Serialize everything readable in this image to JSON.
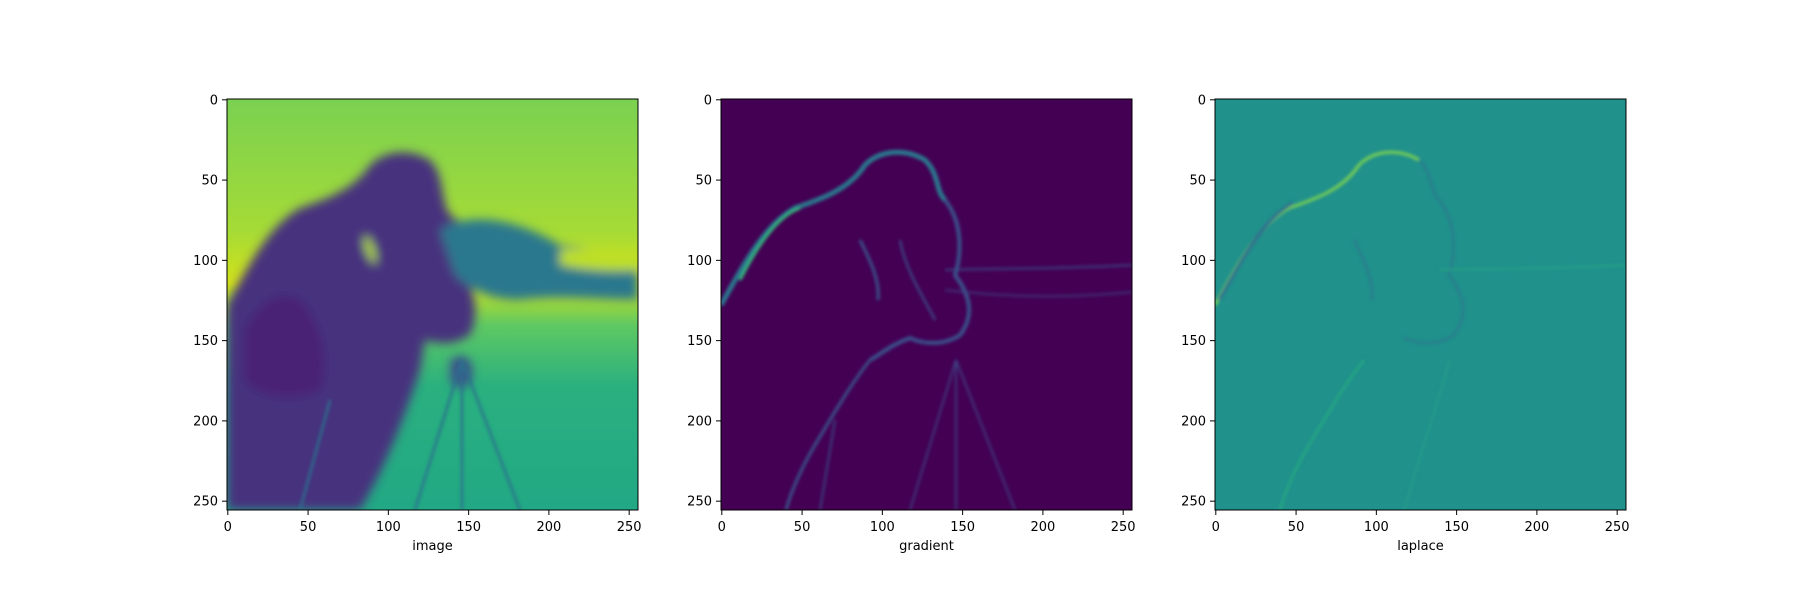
{
  "chart_data": [
    {
      "type": "heatmap",
      "image_kind": "blurred grayscale photograph (cameraman) rendered with viridis colormap",
      "xlabel": "image",
      "ylabel": "",
      "title": "",
      "xlim": [
        0,
        255
      ],
      "ylim": [
        255,
        0
      ],
      "xticks": [
        0,
        50,
        100,
        150,
        200,
        250
      ],
      "yticks": [
        0,
        50,
        100,
        150,
        200,
        250
      ],
      "colormap": "viridis",
      "grid": false
    },
    {
      "type": "heatmap",
      "image_kind": "gradient magnitude of the image, mostly dark with bright edges",
      "xlabel": "gradient",
      "ylabel": "",
      "title": "",
      "xlim": [
        0,
        255
      ],
      "ylim": [
        255,
        0
      ],
      "xticks": [
        0,
        50,
        100,
        150,
        200,
        250
      ],
      "yticks": [
        0,
        50,
        100,
        150,
        200,
        250
      ],
      "colormap": "viridis",
      "grid": false
    },
    {
      "type": "heatmap",
      "image_kind": "Laplacian of the image, uniform mid-teal with thin light/dark edge lines",
      "xlabel": "laplace",
      "ylabel": "",
      "title": "",
      "xlim": [
        0,
        255
      ],
      "ylim": [
        255,
        0
      ],
      "xticks": [
        0,
        50,
        100,
        150,
        200,
        250
      ],
      "yticks": [
        0,
        50,
        100,
        150,
        200,
        250
      ],
      "colormap": "viridis",
      "grid": false
    }
  ],
  "colors": {
    "image_bg_top": "#8fd14f",
    "image_bg_mid": "#bddf26",
    "image_bg_low": "#22a884",
    "image_dark": "#414487",
    "gradient_bg": "#440154",
    "gradient_edge": "#3b528b",
    "gradient_edge_bright": "#21918c",
    "laplace_bg": "#21918c",
    "laplace_light": "#5ec962",
    "laplace_dark": "#31688e"
  }
}
